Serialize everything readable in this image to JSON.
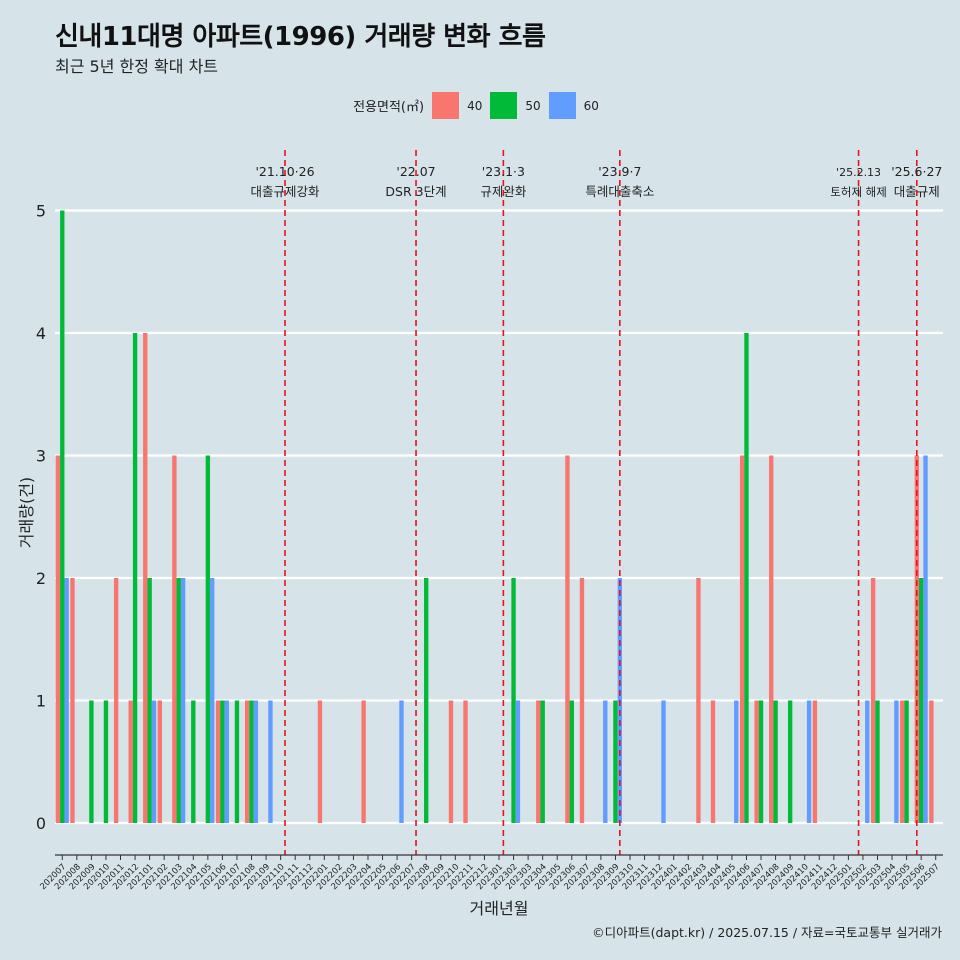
{
  "title": "신내11대명 아파트(1996) 거래량 변화 흐름",
  "subtitle": "최근 5년 한정 확대 차트",
  "credit": "©디아파트(dapt.kr) / 2025.07.15 / 자료=국토교통부 실거래가",
  "legend": {
    "title": "전용면적(㎡)",
    "items": [
      {
        "label": "40",
        "color": "#f8766d"
      },
      {
        "label": "50",
        "color": "#00ba38"
      },
      {
        "label": "60",
        "color": "#619cff"
      }
    ]
  },
  "chart_data": {
    "type": "bar",
    "xlabel": "거래년월",
    "ylabel": "거래량(건)",
    "ylim": [
      0,
      5
    ],
    "yticks": [
      0,
      1,
      2,
      3,
      4,
      5
    ],
    "categories": [
      "202007",
      "202008",
      "202009",
      "202010",
      "202011",
      "202012",
      "202101",
      "202102",
      "202103",
      "202104",
      "202105",
      "202106",
      "202107",
      "202108",
      "202109",
      "202110",
      "202111",
      "202112",
      "202201",
      "202202",
      "202203",
      "202204",
      "202205",
      "202206",
      "202207",
      "202208",
      "202209",
      "202210",
      "202211",
      "202212",
      "202301",
      "202302",
      "202303",
      "202304",
      "202305",
      "202306",
      "202307",
      "202308",
      "202309",
      "202310",
      "202311",
      "202312",
      "202401",
      "202402",
      "202403",
      "202404",
      "202405",
      "202406",
      "202407",
      "202408",
      "202409",
      "202410",
      "202411",
      "202412",
      "202501",
      "202502",
      "202503",
      "202504",
      "202505",
      "202506",
      "202507"
    ],
    "series": [
      {
        "name": "40",
        "color": "#f8766d",
        "values": [
          3,
          2,
          0,
          0,
          2,
          1,
          4,
          1,
          3,
          0,
          0,
          1,
          0,
          1,
          0,
          0,
          0,
          0,
          1,
          0,
          0,
          1,
          0,
          0,
          0,
          0,
          0,
          1,
          1,
          0,
          0,
          0,
          0,
          1,
          0,
          3,
          2,
          0,
          0,
          0,
          0,
          0,
          0,
          0,
          2,
          1,
          0,
          3,
          1,
          3,
          0,
          0,
          1,
          0,
          0,
          0,
          2,
          0,
          1,
          3,
          1
        ]
      },
      {
        "name": "50",
        "color": "#00ba38",
        "values": [
          5,
          0,
          1,
          1,
          0,
          4,
          2,
          0,
          2,
          1,
          3,
          1,
          1,
          1,
          0,
          0,
          0,
          0,
          0,
          0,
          0,
          0,
          0,
          0,
          0,
          2,
          0,
          0,
          0,
          0,
          0,
          2,
          0,
          1,
          0,
          1,
          0,
          0,
          1,
          0,
          0,
          0,
          0,
          0,
          0,
          0,
          0,
          4,
          1,
          1,
          1,
          0,
          0,
          0,
          0,
          0,
          1,
          0,
          1,
          2,
          0
        ]
      },
      {
        "name": "60",
        "color": "#619cff",
        "values": [
          2,
          0,
          0,
          0,
          0,
          0,
          1,
          0,
          2,
          0,
          2,
          1,
          0,
          1,
          1,
          0,
          0,
          0,
          0,
          0,
          0,
          0,
          0,
          1,
          0,
          0,
          0,
          0,
          0,
          0,
          0,
          1,
          0,
          0,
          0,
          0,
          0,
          1,
          2,
          0,
          0,
          1,
          0,
          0,
          0,
          0,
          1,
          0,
          0,
          0,
          0,
          1,
          0,
          0,
          0,
          1,
          0,
          1,
          0,
          3,
          0
        ]
      }
    ],
    "annotations": [
      {
        "date": "'21.10·26",
        "label": "대출규제강화",
        "index": 15.8
      },
      {
        "date": "'22.07",
        "label": "DSR 3단계",
        "index": 24.8
      },
      {
        "date": "'23.1·3",
        "label": "규제완화",
        "index": 30.8
      },
      {
        "date": "'23.9·7",
        "label": "특례대출축소",
        "index": 38.8
      },
      {
        "date": "'25.2.13",
        "label": "토허제 해제",
        "index": 55.2
      },
      {
        "date": "'25.6·27",
        "label": "대출규제",
        "index": 59.2
      }
    ]
  }
}
